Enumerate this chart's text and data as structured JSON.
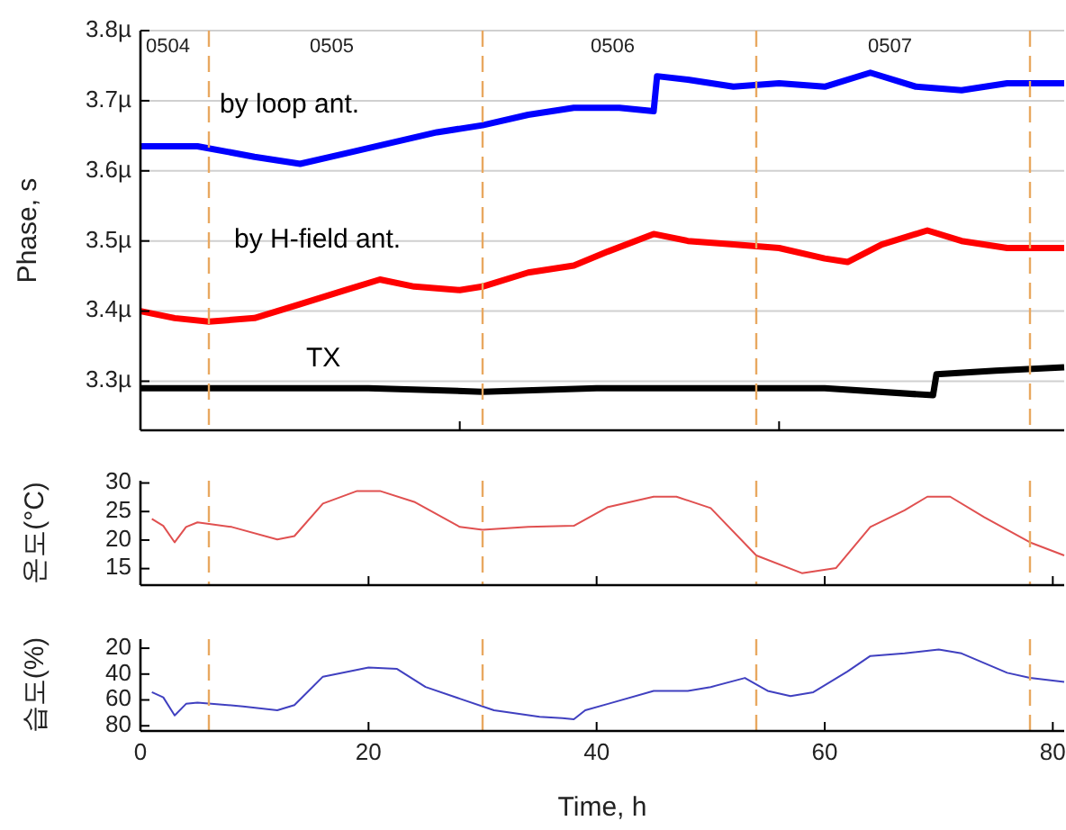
{
  "chart_data": [
    {
      "type": "line",
      "ylabel": "Phase, s",
      "xlim": [
        0,
        81
      ],
      "ylim": [
        3.23,
        3.8
      ],
      "xticks": [
        {
          "value": 0,
          "label": null
        },
        {
          "value": 28,
          "label": null
        },
        {
          "value": 56,
          "label": null
        }
      ],
      "yticks": [
        {
          "value": 3.3,
          "label": "3.3µ"
        },
        {
          "value": 3.4,
          "label": "3.4µ"
        },
        {
          "value": 3.5,
          "label": "3.5µ"
        },
        {
          "value": 3.6,
          "label": "3.6µ"
        },
        {
          "value": 3.7,
          "label": "3.7µ"
        },
        {
          "value": 3.8,
          "label": "3.8µ"
        }
      ],
      "tick_labels": "y",
      "grid": "y",
      "ref_lines": [
        {
          "axis": "x",
          "value": 6,
          "color": "#e8a860",
          "line_style": "dashed"
        },
        {
          "axis": "x",
          "value": 30,
          "color": "#e8a860",
          "line_style": "dashed"
        },
        {
          "axis": "x",
          "value": 54,
          "color": "#e8a860",
          "line_style": "dashed"
        },
        {
          "axis": "x",
          "value": 78,
          "color": "#e8a860",
          "line_style": "dashed"
        }
      ],
      "annotations": [
        "0504",
        "0505",
        "0506",
        "0507"
      ],
      "series": [
        {
          "name": "by loop ant.",
          "color": "#0000ff",
          "x": [
            0,
            5,
            10,
            14,
            18,
            22,
            26,
            30,
            34,
            38,
            42,
            45,
            45.3,
            48,
            52,
            56,
            60,
            64,
            68,
            72,
            76,
            81
          ],
          "values": [
            3.635,
            3.635,
            3.62,
            3.61,
            3.625,
            3.64,
            3.655,
            3.665,
            3.68,
            3.69,
            3.69,
            3.685,
            3.735,
            3.73,
            3.72,
            3.725,
            3.72,
            3.74,
            3.72,
            3.715,
            3.725,
            3.725
          ]
        },
        {
          "name": "by H-field ant.",
          "color": "#ff0000",
          "x": [
            0,
            3,
            6,
            10,
            14,
            18,
            21,
            24,
            28,
            30,
            34,
            38,
            41,
            45,
            48,
            52,
            56,
            60,
            62,
            65,
            69,
            72,
            76,
            81
          ],
          "values": [
            3.4,
            3.39,
            3.385,
            3.39,
            3.41,
            3.43,
            3.445,
            3.435,
            3.43,
            3.435,
            3.455,
            3.465,
            3.485,
            3.51,
            3.5,
            3.495,
            3.49,
            3.475,
            3.47,
            3.495,
            3.515,
            3.5,
            3.49,
            3.49
          ]
        },
        {
          "name": "TX",
          "color": "#000000",
          "x": [
            0,
            10,
            20,
            30,
            40,
            50,
            60,
            69.5,
            69.8,
            75,
            81
          ],
          "values": [
            3.29,
            3.29,
            3.29,
            3.285,
            3.29,
            3.29,
            3.29,
            3.28,
            3.31,
            3.315,
            3.32
          ]
        }
      ]
    },
    {
      "type": "line",
      "ylabel": "온도(°C)",
      "xlim": [
        0,
        81
      ],
      "ylim": [
        12.1,
        30.4
      ],
      "xticks": [
        {
          "value": 0,
          "label": null
        },
        {
          "value": 20,
          "label": null
        },
        {
          "value": 40,
          "label": null
        },
        {
          "value": 60,
          "label": null
        },
        {
          "value": 80,
          "label": null
        }
      ],
      "yticks": [
        15,
        20,
        25,
        30
      ],
      "tick_labels": "y",
      "ref_lines": [
        {
          "axis": "x",
          "value": 6,
          "color": "#e8a860",
          "line_style": "dashed"
        },
        {
          "axis": "x",
          "value": 30,
          "color": "#e8a860",
          "line_style": "dashed"
        },
        {
          "axis": "x",
          "value": 54,
          "color": "#e8a860",
          "line_style": "dashed"
        },
        {
          "axis": "x",
          "value": 78,
          "color": "#e8a860",
          "line_style": "dashed"
        }
      ],
      "series": [
        {
          "color": "#e05050",
          "x": [
            1,
            2,
            3,
            4,
            5,
            8,
            12,
            13.5,
            16,
            19,
            21,
            24,
            28,
            30,
            34,
            38,
            41,
            45,
            47,
            50,
            54,
            58,
            61,
            64,
            67,
            69,
            71,
            74,
            78,
            81
          ],
          "values": [
            23.7,
            22.5,
            19.6,
            22.3,
            23.1,
            22.3,
            20.1,
            20.7,
            26.4,
            28.6,
            28.6,
            26.7,
            22.3,
            21.8,
            22.3,
            22.5,
            25.8,
            27.6,
            27.6,
            25.6,
            17.3,
            14.2,
            15.1,
            22.3,
            25.2,
            27.6,
            27.6,
            24,
            19.6,
            17.3
          ]
        }
      ]
    },
    {
      "type": "line",
      "ylabel": "습도(%)",
      "xlabel": "Time, h",
      "xlim": [
        0,
        81
      ],
      "ylim": [
        84,
        13
      ],
      "xticks": [
        0,
        20,
        40,
        60,
        80
      ],
      "yticks": [
        20,
        40,
        60,
        80
      ],
      "ref_lines": [
        {
          "axis": "x",
          "value": 6,
          "color": "#e8a860",
          "line_style": "dashed"
        },
        {
          "axis": "x",
          "value": 30,
          "color": "#e8a860",
          "line_style": "dashed"
        },
        {
          "axis": "x",
          "value": 54,
          "color": "#e8a860",
          "line_style": "dashed"
        },
        {
          "axis": "x",
          "value": 78,
          "color": "#e8a860",
          "line_style": "dashed"
        }
      ],
      "series": [
        {
          "color": "#4040c0",
          "x": [
            1,
            2,
            3,
            4,
            5,
            9,
            12,
            13.5,
            16,
            20,
            22.5,
            25,
            28,
            31,
            35,
            37,
            38,
            39,
            41,
            45,
            48,
            50,
            53,
            55,
            57,
            59,
            62,
            64,
            67,
            70,
            72,
            76,
            78,
            81
          ],
          "values": [
            54,
            58,
            72,
            63,
            62,
            65,
            68,
            64,
            42,
            35,
            36,
            50,
            59,
            68,
            73,
            74,
            75,
            68,
            63,
            53,
            53,
            50,
            43,
            53,
            57,
            54,
            38,
            26,
            24,
            21,
            24,
            39,
            43,
            46
          ]
        }
      ]
    }
  ]
}
